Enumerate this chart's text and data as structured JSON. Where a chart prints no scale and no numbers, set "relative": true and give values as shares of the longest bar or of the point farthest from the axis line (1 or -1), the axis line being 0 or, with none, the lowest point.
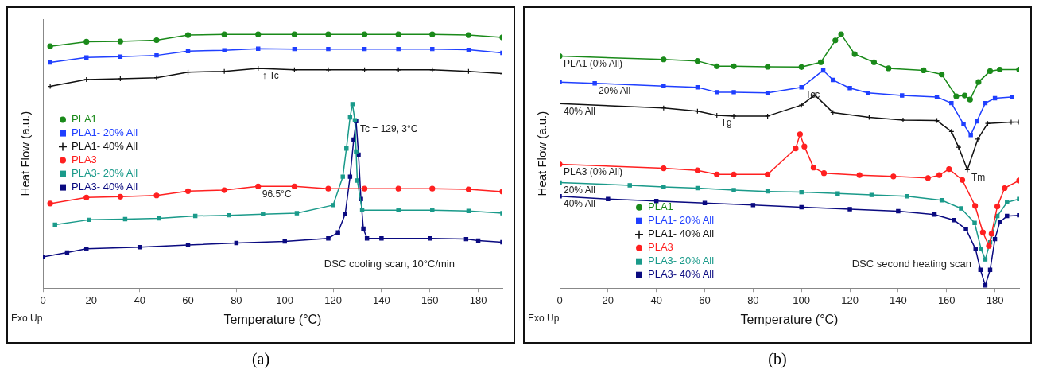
{
  "chart_data": [
    {
      "type": "line",
      "title": "(a)",
      "xlabel": "Temperature (°C)",
      "ylabel": "Heat Flow (a.u.)",
      "relative": true,
      "xlim": [
        0,
        190
      ],
      "xticks": [
        0,
        20,
        40,
        60,
        80,
        100,
        120,
        140,
        160,
        180
      ],
      "grid": false,
      "legend": "left",
      "annotations": [
        {
          "text": "↑ Tc",
          "x": 89,
          "y": 0.866
        },
        {
          "text": "Tc = 129, 3°C",
          "x": 129.5,
          "y": 0.658
        },
        {
          "text": "96.5°C",
          "x": 89,
          "y": 0.401
        },
        "Exo Up",
        "DSC cooling scan, 10°C/min"
      ],
      "series": [
        {
          "name": "PLA1",
          "color": "#1a8a1a",
          "marker": "circle",
          "x": [
            3,
            18,
            32,
            47,
            60,
            75,
            89,
            104,
            118,
            133,
            147,
            161,
            176,
            190
          ],
          "values": [
            0.953,
            0.971,
            0.972,
            0.977,
            0.997,
            1.0,
            1.0,
            1.0,
            1.0,
            1.0,
            1.0,
            1.0,
            0.997,
            0.988
          ]
        },
        {
          "name": "PLA1- 20% All",
          "color": "#1f3fff",
          "marker": "square",
          "x": [
            3,
            18,
            32,
            47,
            60,
            75,
            89,
            104,
            118,
            133,
            147,
            161,
            176,
            190
          ],
          "values": [
            0.889,
            0.909,
            0.912,
            0.917,
            0.934,
            0.937,
            0.943,
            0.942,
            0.942,
            0.942,
            0.942,
            0.942,
            0.939,
            0.927
          ]
        },
        {
          "name": "PLA1- 40% All",
          "color": "#111111",
          "marker": "cross",
          "x": [
            3,
            18,
            32,
            47,
            60,
            75,
            89,
            104,
            118,
            133,
            147,
            161,
            176,
            190
          ],
          "values": [
            0.795,
            0.822,
            0.825,
            0.829,
            0.851,
            0.854,
            0.866,
            0.86,
            0.86,
            0.86,
            0.86,
            0.86,
            0.854,
            0.845
          ]
        },
        {
          "name": "PLA3",
          "color": "#ff2020",
          "marker": "circle",
          "x": [
            3,
            18,
            32,
            47,
            60,
            75,
            89,
            104,
            118,
            133,
            147,
            161,
            176,
            190
          ],
          "values": [
            0.333,
            0.357,
            0.36,
            0.365,
            0.382,
            0.386,
            0.401,
            0.401,
            0.392,
            0.392,
            0.392,
            0.392,
            0.389,
            0.38
          ]
        },
        {
          "name": "PLA3- 20% All",
          "color": "#1a9a8a",
          "marker": "square",
          "x": [
            5,
            19,
            34,
            48,
            63,
            77,
            91,
            105,
            120,
            124,
            125.5,
            127,
            128,
            129,
            129.5,
            130,
            132,
            147,
            161,
            176,
            190
          ],
          "values": [
            0.25,
            0.269,
            0.272,
            0.275,
            0.284,
            0.287,
            0.291,
            0.295,
            0.327,
            0.439,
            0.55,
            0.673,
            0.725,
            0.661,
            0.538,
            0.424,
            0.307,
            0.307,
            0.307,
            0.304,
            0.295
          ]
        },
        {
          "name": "PLA3- 40% All",
          "color": "#0a0a80",
          "marker": "square",
          "x": [
            0,
            10,
            18,
            40,
            60,
            80,
            100,
            118,
            122,
            125,
            127,
            128.5,
            129.5,
            130.5,
            131.5,
            132.5,
            134,
            140,
            160,
            175,
            180,
            190
          ],
          "values": [
            0.123,
            0.14,
            0.155,
            0.161,
            0.17,
            0.178,
            0.184,
            0.196,
            0.219,
            0.292,
            0.439,
            0.585,
            0.658,
            0.526,
            0.351,
            0.234,
            0.196,
            0.196,
            0.196,
            0.193,
            0.187,
            0.181
          ]
        }
      ]
    },
    {
      "type": "line",
      "title": "(b)",
      "xlabel": "Temperature (°C)",
      "ylabel": "Heat Flow (a.u.)",
      "relative": true,
      "xlim": [
        0,
        190
      ],
      "xticks": [
        0,
        20,
        40,
        60,
        80,
        100,
        120,
        140,
        160,
        180
      ],
      "grid": false,
      "legend": "bottom left",
      "annotations": [
        {
          "text": "PLA1 (0% All)",
          "x": 0,
          "y": 0.914
        },
        {
          "text": "20% All",
          "x": 14.5,
          "y": 0.807
        },
        {
          "text": "40% All",
          "x": 0,
          "y": 0.727
        },
        {
          "text": "Tg",
          "x": 65,
          "y": 0.681
        },
        {
          "text": "Tcc",
          "x": 100,
          "y": 0.791
        },
        {
          "text": "Tm",
          "x": 168.6,
          "y": 0.466
        },
        {
          "text": "PLA3 (0% All)",
          "x": 0,
          "y": 0.488
        },
        {
          "text": "20% All",
          "x": 0,
          "y": 0.416
        },
        {
          "text": "40% All",
          "x": 0,
          "y": 0.362
        },
        "Exo Up",
        "DSC second heating scan"
      ],
      "series": [
        {
          "name": "PLA1",
          "color": "#1a8a1a",
          "marker": "circle",
          "x": [
            0,
            43,
            57,
            65,
            72,
            86,
            100,
            108,
            114,
            116.4,
            122,
            130,
            136,
            150.5,
            158,
            164,
            167.5,
            169.7,
            173.2,
            178,
            182,
            190
          ],
          "values": [
            0.914,
            0.901,
            0.895,
            0.874,
            0.874,
            0.872,
            0.871,
            0.89,
            0.976,
            1.0,
            0.922,
            0.89,
            0.866,
            0.858,
            0.842,
            0.756,
            0.759,
            0.743,
            0.812,
            0.855,
            0.861,
            0.861
          ]
        },
        {
          "name": "PLA1- 20% All",
          "color": "#1f3fff",
          "marker": "square",
          "x": [
            0,
            14.5,
            43,
            57,
            65,
            72,
            86,
            100,
            109,
            113,
            120,
            127.5,
            141.6,
            156,
            162,
            167,
            170,
            172.5,
            176,
            180,
            187
          ],
          "values": [
            0.812,
            0.807,
            0.796,
            0.791,
            0.772,
            0.772,
            0.769,
            0.791,
            0.858,
            0.82,
            0.788,
            0.769,
            0.759,
            0.753,
            0.729,
            0.646,
            0.603,
            0.657,
            0.729,
            0.748,
            0.753
          ]
        },
        {
          "name": "PLA1- 40% All",
          "color": "#111111",
          "marker": "cross",
          "x": [
            0,
            43,
            57,
            65,
            72,
            86,
            100,
            105.5,
            113,
            128,
            142,
            156,
            162,
            165,
            168.6,
            172.9,
            177,
            186.7,
            190
          ],
          "values": [
            0.727,
            0.71,
            0.697,
            0.681,
            0.678,
            0.678,
            0.721,
            0.761,
            0.692,
            0.673,
            0.662,
            0.66,
            0.617,
            0.555,
            0.466,
            0.587,
            0.649,
            0.654,
            0.654
          ]
        },
        {
          "name": "PLA3",
          "color": "#ff2020",
          "marker": "circle",
          "x": [
            0,
            43,
            57,
            65,
            72,
            86,
            97.6,
            99.4,
            101.2,
            105,
            109.3,
            124,
            138,
            152.3,
            157,
            161,
            166.5,
            171.8,
            175,
            177.5,
            178.6,
            181,
            184,
            190
          ],
          "values": [
            0.488,
            0.472,
            0.464,
            0.448,
            0.448,
            0.448,
            0.55,
            0.606,
            0.558,
            0.475,
            0.453,
            0.445,
            0.44,
            0.434,
            0.445,
            0.469,
            0.426,
            0.324,
            0.22,
            0.166,
            0.214,
            0.322,
            0.394,
            0.424
          ]
        },
        {
          "name": "PLA3- 20% All",
          "color": "#1a9a8a",
          "marker": "square",
          "x": [
            0,
            29,
            43,
            57,
            72,
            86,
            100,
            115,
            129,
            143.7,
            158,
            166,
            171.6,
            174.3,
            176,
            178,
            181,
            185,
            190
          ],
          "values": [
            0.416,
            0.405,
            0.399,
            0.394,
            0.386,
            0.381,
            0.378,
            0.373,
            0.367,
            0.362,
            0.346,
            0.314,
            0.257,
            0.153,
            0.113,
            0.18,
            0.284,
            0.338,
            0.351
          ]
        },
        {
          "name": "PLA3- 40% All",
          "color": "#0a0a80",
          "marker": "square",
          "x": [
            0,
            20,
            40,
            60,
            80,
            100,
            120,
            140,
            155,
            163,
            168,
            172,
            174,
            176,
            178,
            180,
            182,
            185,
            190
          ],
          "values": [
            0.362,
            0.351,
            0.343,
            0.335,
            0.327,
            0.319,
            0.311,
            0.303,
            0.29,
            0.268,
            0.233,
            0.153,
            0.072,
            0.011,
            0.072,
            0.193,
            0.26,
            0.284,
            0.287
          ]
        }
      ]
    }
  ]
}
